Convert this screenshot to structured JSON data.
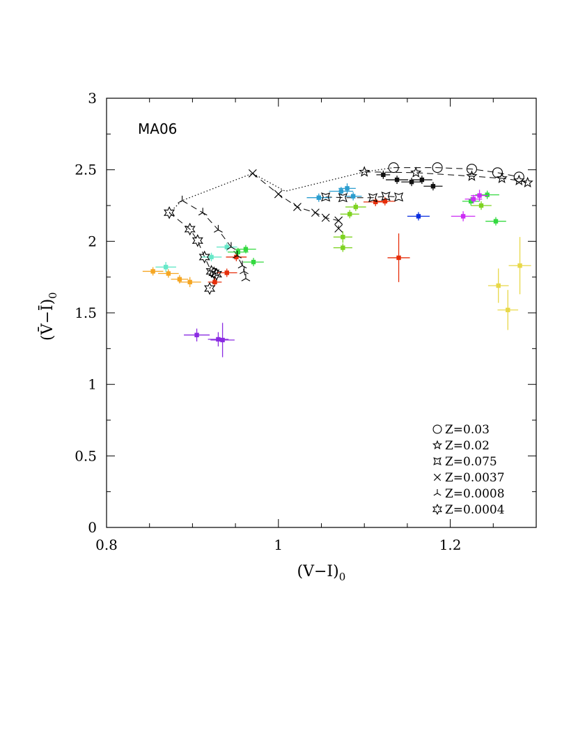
{
  "chart_data": {
    "type": "scatter",
    "title": "",
    "panel_label": "MA06",
    "xlabel": "(V−I)",
    "xlabel_sub": "0",
    "ylabel": "(V̄−Ī)",
    "ylabel_sub": "0",
    "xlim": [
      0.8,
      1.3
    ],
    "ylim": [
      0,
      3
    ],
    "x_ticks": [
      0.8,
      1,
      1.2
    ],
    "x_tick_labels": [
      "0.8",
      "1",
      "1.2"
    ],
    "y_ticks": [
      0,
      0.5,
      1,
      1.5,
      2,
      2.5,
      3
    ],
    "y_tick_labels": [
      "0",
      "0.5",
      "1",
      "1.5",
      "2",
      "2.5",
      "3"
    ],
    "x_minor_step": 0.05,
    "y_minor_step": 0.25,
    "grid": false,
    "legend_position": "bottom-right",
    "models": [
      {
        "name": "Z=0.03",
        "marker": "circle",
        "line": "dashed",
        "x": [
          1.134,
          1.185,
          1.225,
          1.255,
          1.28
        ],
        "y": [
          2.515,
          2.515,
          2.505,
          2.48,
          2.45
        ]
      },
      {
        "name": "Z=0.02",
        "marker": "star5",
        "line": "dashed",
        "x": [
          1.1,
          1.16,
          1.225,
          1.26,
          1.28,
          1.29
        ],
        "y": [
          2.485,
          2.48,
          2.455,
          2.44,
          2.425,
          2.41
        ]
      },
      {
        "name": "Z=0.075",
        "marker": "star4",
        "line": "dashed",
        "x": [
          1.055,
          1.075,
          1.11,
          1.125,
          1.14
        ],
        "y": [
          2.31,
          2.305,
          2.305,
          2.315,
          2.31
        ]
      },
      {
        "name": "Z=0.0037",
        "marker": "cross",
        "line": "dashed",
        "x": [
          0.97,
          1.0,
          1.022,
          1.043,
          1.055,
          1.07,
          1.07
        ],
        "y": [
          2.475,
          2.33,
          2.24,
          2.2,
          2.165,
          2.145,
          2.09
        ]
      },
      {
        "name": "Z=0.0008",
        "marker": "tri",
        "line": "dashed",
        "x": [
          0.888,
          0.912,
          0.93,
          0.945,
          0.952,
          0.958,
          0.96,
          0.962
        ],
        "y": [
          2.285,
          2.2,
          2.08,
          1.96,
          1.9,
          1.83,
          1.79,
          1.74
        ]
      },
      {
        "name": "Z=0.0004",
        "marker": "star6",
        "line": "dashed",
        "x": [
          0.873,
          0.897,
          0.906,
          0.914,
          0.922,
          0.925,
          0.928,
          0.92
        ],
        "y": [
          2.2,
          2.085,
          2.005,
          1.89,
          1.79,
          1.78,
          1.77,
          1.67
        ]
      }
    ],
    "dotted_connector": {
      "x": [
        0.873,
        0.888,
        0.97,
        1.008,
        1.1,
        1.134
      ],
      "y": [
        2.2,
        2.285,
        2.475,
        2.35,
        2.485,
        2.515
      ]
    },
    "observations": [
      {
        "color": "#f5a623",
        "x": 0.854,
        "y": 1.79,
        "xerr": 0.012,
        "yerr": 0.0
      },
      {
        "color": "#f5a623",
        "x": 0.872,
        "y": 1.775,
        "xerr": 0.012,
        "yerr": 0.0
      },
      {
        "color": "#f5a623",
        "x": 0.885,
        "y": 1.735,
        "xerr": 0.01,
        "yerr": 0.0
      },
      {
        "color": "#f5a623",
        "x": 0.897,
        "y": 1.715,
        "xerr": 0.013,
        "yerr": 0.035
      },
      {
        "color": "#66e8c8",
        "x": 0.869,
        "y": 1.82,
        "xerr": 0.012,
        "yerr": 0.035
      },
      {
        "color": "#66e8c8",
        "x": 0.922,
        "y": 1.89,
        "xerr": 0.012,
        "yerr": 0.03
      },
      {
        "color": "#66e8c8",
        "x": 0.94,
        "y": 1.96,
        "xerr": 0.012,
        "yerr": 0.03
      },
      {
        "color": "#8a2be2",
        "x": 0.905,
        "y": 1.345,
        "xerr": 0.015,
        "yerr": 0.045
      },
      {
        "color": "#8a2be2",
        "x": 0.93,
        "y": 1.315,
        "xerr": 0.012,
        "yerr": 0.05
      },
      {
        "color": "#8a2be2",
        "x": 0.935,
        "y": 1.31,
        "xerr": 0.014,
        "yerr": 0.12
      },
      {
        "color": "#e62e0a",
        "x": 0.926,
        "y": 1.715,
        "xerr": 0.008,
        "yerr": 0.0
      },
      {
        "color": "#e62e0a",
        "x": 0.94,
        "y": 1.78,
        "xerr": 0.012,
        "yerr": 0.0
      },
      {
        "color": "#e62e0a",
        "x": 0.951,
        "y": 1.89,
        "xerr": 0.012,
        "yerr": 0.0
      },
      {
        "color": "#e62e0a",
        "x": 1.113,
        "y": 2.275,
        "xerr": 0.014,
        "yerr": 0.0
      },
      {
        "color": "#e62e0a",
        "x": 1.124,
        "y": 2.28,
        "xerr": 0.012,
        "yerr": 0.0
      },
      {
        "color": "#e62e0a",
        "x": 1.14,
        "y": 1.885,
        "xerr": 0.013,
        "yerr": 0.17
      },
      {
        "color": "#33d93f",
        "x": 0.953,
        "y": 1.925,
        "xerr": 0.012,
        "yerr": 0.0
      },
      {
        "color": "#33d93f",
        "x": 0.962,
        "y": 1.945,
        "xerr": 0.012,
        "yerr": 0.0
      },
      {
        "color": "#33d93f",
        "x": 0.971,
        "y": 1.855,
        "xerr": 0.012,
        "yerr": 0.0
      },
      {
        "color": "#33d93f",
        "x": 1.243,
        "y": 2.325,
        "xerr": 0.014,
        "yerr": 0.0
      },
      {
        "color": "#33d93f",
        "x": 1.253,
        "y": 2.14,
        "xerr": 0.012,
        "yerr": 0.0
      },
      {
        "color": "#33d93f",
        "x": 1.224,
        "y": 2.28,
        "xerr": 0.01,
        "yerr": 0.0
      },
      {
        "color": "#7ed321",
        "x": 1.075,
        "y": 2.03,
        "xerr": 0.011,
        "yerr": 0.04
      },
      {
        "color": "#7ed321",
        "x": 1.075,
        "y": 1.955,
        "xerr": 0.011,
        "yerr": 0.0
      },
      {
        "color": "#7ed321",
        "x": 1.083,
        "y": 2.19,
        "xerr": 0.011,
        "yerr": 0.0
      },
      {
        "color": "#7ed321",
        "x": 1.09,
        "y": 2.24,
        "xerr": 0.012,
        "yerr": 0.0
      },
      {
        "color": "#7ed321",
        "x": 1.236,
        "y": 2.25,
        "xerr": 0.012,
        "yerr": 0.03
      },
      {
        "color": "#2a9dcf",
        "x": 1.047,
        "y": 2.305,
        "xerr": 0.014,
        "yerr": 0.0
      },
      {
        "color": "#2a9dcf",
        "x": 1.073,
        "y": 2.35,
        "xerr": 0.014,
        "yerr": 0.03
      },
      {
        "color": "#2a9dcf",
        "x": 1.08,
        "y": 2.37,
        "xerr": 0.01,
        "yerr": 0.035
      },
      {
        "color": "#2a9dcf",
        "x": 1.087,
        "y": 2.315,
        "xerr": 0.01,
        "yerr": 0.0
      },
      {
        "color": "#111111",
        "x": 1.122,
        "y": 2.465,
        "xerr": 0.008,
        "yerr": 0.0
      },
      {
        "color": "#111111",
        "x": 1.138,
        "y": 2.43,
        "xerr": 0.013,
        "yerr": 0.0
      },
      {
        "color": "#111111",
        "x": 1.155,
        "y": 2.415,
        "xerr": 0.012,
        "yerr": 0.0
      },
      {
        "color": "#111111",
        "x": 1.167,
        "y": 2.43,
        "xerr": 0.012,
        "yerr": 0.0
      },
      {
        "color": "#111111",
        "x": 1.18,
        "y": 2.385,
        "xerr": 0.011,
        "yerr": 0.0
      },
      {
        "color": "#0a2ee0",
        "x": 1.163,
        "y": 2.175,
        "xerr": 0.013,
        "yerr": 0.0
      },
      {
        "color": "#cc2ef5",
        "x": 1.215,
        "y": 2.175,
        "xerr": 0.014,
        "yerr": 0.035
      },
      {
        "color": "#cc2ef5",
        "x": 1.227,
        "y": 2.295,
        "xerr": 0.01,
        "yerr": 0.03
      },
      {
        "color": "#cc2ef5",
        "x": 1.234,
        "y": 2.32,
        "xerr": 0.01,
        "yerr": 0.04
      },
      {
        "color": "#e8d848",
        "x": 1.256,
        "y": 1.69,
        "xerr": 0.012,
        "yerr": 0.12
      },
      {
        "color": "#e8d848",
        "x": 1.267,
        "y": 1.52,
        "xerr": 0.012,
        "yerr": 0.14
      },
      {
        "color": "#e8d848",
        "x": 1.281,
        "y": 1.83,
        "xerr": 0.013,
        "yerr": 0.2
      }
    ]
  }
}
